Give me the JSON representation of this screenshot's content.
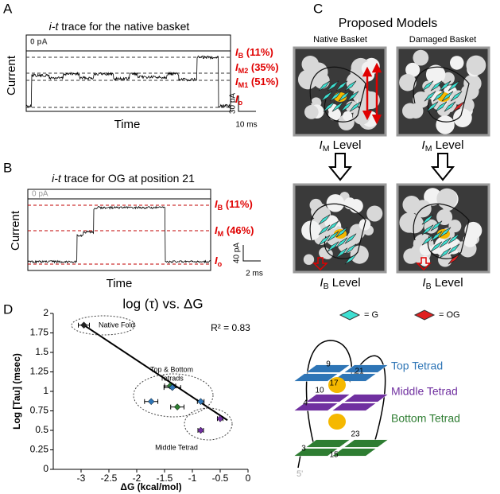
{
  "panel_labels": [
    "A",
    "B",
    "C",
    "D"
  ],
  "panel_a": {
    "title": {
      "italic": "i-t",
      "rest": " trace for the native basket"
    },
    "zero": "0 pA",
    "levels": [
      {
        "main": "I",
        "sub": "B",
        "rest": " (11%)"
      },
      {
        "main": "I",
        "sub": "M2",
        "rest": " (35%)"
      },
      {
        "main": "I",
        "sub": "M1",
        "rest": " (51%)"
      },
      {
        "main": "I",
        "sub": "o"
      }
    ],
    "ylabel": "Current",
    "xlabel": "Time",
    "scale_y": "30 pA",
    "scale_x": "10 ms"
  },
  "panel_b": {
    "title": {
      "italic": "i-t",
      "rest": " trace for OG at position 21"
    },
    "zero": "0 pA",
    "levels": [
      {
        "main": "I",
        "sub": "B",
        "rest": " (11%)"
      },
      {
        "main": "I",
        "sub": "M",
        "rest": " (46%)"
      },
      {
        "main": "I",
        "sub": "o"
      }
    ],
    "ylabel": "Current",
    "xlabel": "Time",
    "scale_y": "40 pA",
    "scale_x": "2 ms"
  },
  "panel_c": {
    "title": "Proposed Models",
    "columns": [
      "Native Basket",
      "Damaged Basket"
    ],
    "im_level": {
      "main": "I",
      "sub": "M",
      "rest": " Level"
    },
    "ib_level": {
      "main": "I",
      "sub": "B",
      "rest": " Level"
    },
    "legend": [
      "= G",
      "= OG"
    ]
  },
  "diagram": {
    "residues": [
      "9",
      "21",
      "17",
      "10",
      "4",
      "23",
      "3",
      "15"
    ],
    "tetrads": [
      "Top Tetrad",
      "Middle Tetrad",
      "Bottom Tetrad"
    ],
    "end": "5'"
  },
  "chart_data": {
    "type": "scatter",
    "title": "log (τ) vs. ΔG",
    "xlabel": "ΔG (kcal/mol)",
    "ylabel": "Log [Tau] (msec)",
    "x": [
      -2.95,
      -1.74,
      -1.4,
      -1.36,
      -1.27,
      -0.85,
      -0.5,
      -0.85
    ],
    "values": [
      1.85,
      0.87,
      1.07,
      1.05,
      0.8,
      0.87,
      0.65,
      0.5
    ],
    "xerr": [
      0.1,
      0.12,
      0.1,
      0.15,
      0.12,
      0.06,
      0.05,
      0.05
    ],
    "colors": [
      "#222222",
      "#2e75b6",
      "#2e7d32",
      "#2e75b6",
      "#2e7d32",
      "#2e75b6",
      "#7030a0",
      "#7030a0"
    ],
    "fit": {
      "x": [
        -2.95,
        -0.37
      ],
      "values": [
        1.85,
        0.63
      ]
    },
    "annotations": [
      "Native Fold",
      "Top & Bottom",
      "Tetrads",
      "Middle Tetrad",
      "R² = 0.83"
    ],
    "xlim": [
      -3.5,
      0
    ],
    "ylim": [
      0,
      2
    ],
    "xticks": [
      -3,
      -2.5,
      -2,
      -1.5,
      -1,
      -0.5,
      0
    ],
    "yticks": [
      0,
      0.25,
      0.5,
      0.75,
      1,
      1.25,
      1.5,
      1.75,
      2
    ]
  }
}
